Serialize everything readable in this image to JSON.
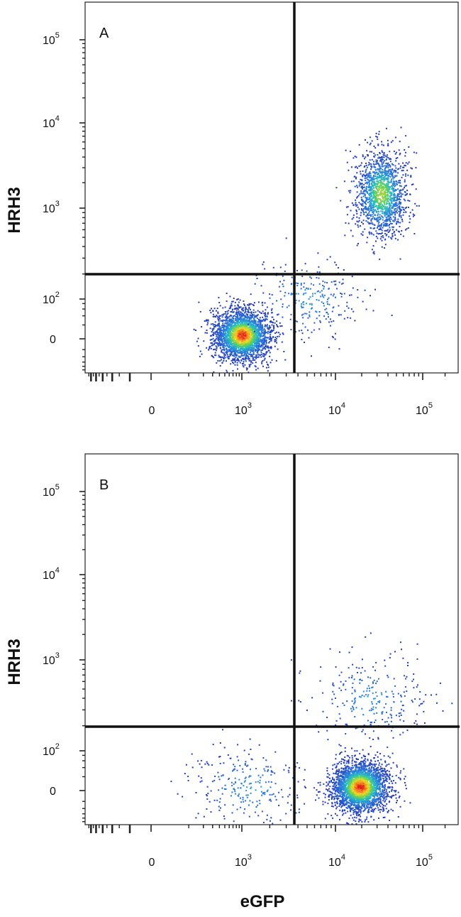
{
  "figure": {
    "x_axis_label": "eGFP",
    "y_axis_label": "HRH3"
  },
  "chart_data": [
    {
      "type": "scatter",
      "panel": "A",
      "y_axis_label": "HRH3",
      "x_scale": "biexponential",
      "y_scale": "biexponential",
      "x_ticks": [
        {
          "base": "0",
          "exp": ""
        },
        {
          "base": "10",
          "exp": "3"
        },
        {
          "base": "10",
          "exp": "4"
        },
        {
          "base": "10",
          "exp": "5"
        }
      ],
      "y_ticks": [
        {
          "base": "0",
          "exp": ""
        },
        {
          "base": "10",
          "exp": "2"
        },
        {
          "base": "10",
          "exp": "3"
        },
        {
          "base": "10",
          "exp": "4"
        },
        {
          "base": "10",
          "exp": "5"
        }
      ],
      "quadrant_gate": {
        "x": 3200,
        "y": 180
      },
      "populations": [
        {
          "description": "eGFP-negative / HRH3-negative cluster",
          "x_center": 1000,
          "y_center": 5,
          "relative_size": "large",
          "peak_density": "high"
        },
        {
          "description": "eGFP-positive / HRH3-positive cluster",
          "x_center": 33000,
          "y_center": 1500,
          "relative_size": "medium",
          "peak_density": "medium"
        },
        {
          "description": "scattered events between clusters",
          "x_center": 5000,
          "y_center": 100,
          "relative_size": "small",
          "peak_density": "low"
        }
      ]
    },
    {
      "type": "scatter",
      "panel": "B",
      "y_axis_label": "HRH3",
      "x_axis_label": "eGFP",
      "x_scale": "biexponential",
      "y_scale": "biexponential",
      "x_ticks": [
        {
          "base": "0",
          "exp": ""
        },
        {
          "base": "10",
          "exp": "3"
        },
        {
          "base": "10",
          "exp": "4"
        },
        {
          "base": "10",
          "exp": "5"
        }
      ],
      "y_ticks": [
        {
          "base": "0",
          "exp": ""
        },
        {
          "base": "10",
          "exp": "2"
        },
        {
          "base": "10",
          "exp": "3"
        },
        {
          "base": "10",
          "exp": "4"
        },
        {
          "base": "10",
          "exp": "5"
        }
      ],
      "quadrant_gate": {
        "x": 3200,
        "y": 180
      },
      "populations": [
        {
          "description": "eGFP-positive / HRH3-negative cluster",
          "x_center": 19000,
          "y_center": 5,
          "relative_size": "large",
          "peak_density": "high"
        },
        {
          "description": "eGFP-negative / HRH3-negative sparse events",
          "x_center": 1200,
          "y_center": 5,
          "relative_size": "small",
          "peak_density": "low"
        },
        {
          "description": "eGFP-positive / HRH3-low sparse events",
          "x_center": 25000,
          "y_center": 400,
          "relative_size": "small",
          "peak_density": "low"
        }
      ]
    }
  ]
}
